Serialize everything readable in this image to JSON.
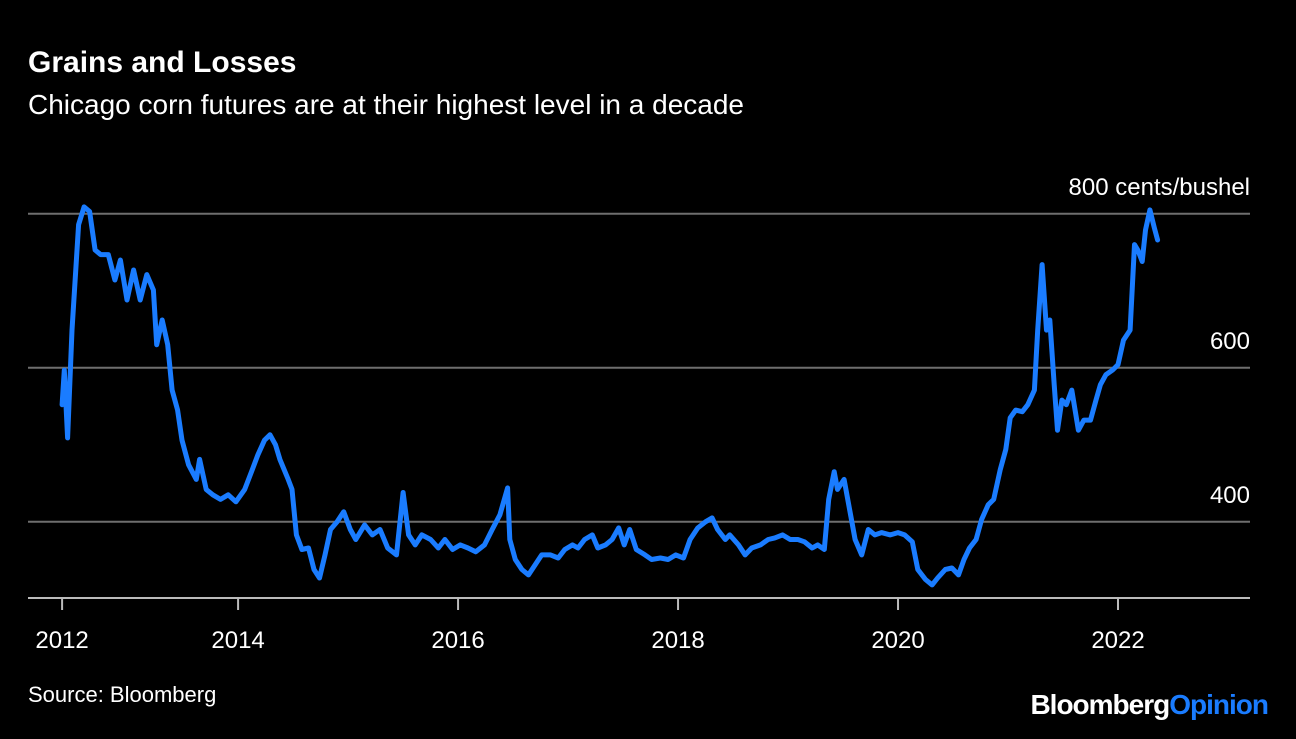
{
  "chart_data": {
    "type": "line",
    "title": "Grains and Losses",
    "subtitle": "Chicago corn futures are at their highest level in a decade",
    "source": "Source: Bloomberg",
    "brand": [
      "Bloomberg",
      "Opinion"
    ],
    "color": "#1a7cff",
    "grid": true,
    "xlim": [
      2012.09,
      2023.2
    ],
    "xticks": [
      2012,
      2014,
      2016,
      2018,
      2020,
      2022
    ],
    "ylim": [
      301,
      860
    ],
    "yticks": [
      400,
      600,
      {
        "value": 800,
        "label": "800 cents/bushel"
      }
    ],
    "x": [
      2012.4,
      2012.42,
      2012.45,
      2012.49,
      2012.55,
      2012.6,
      2012.65,
      2012.7,
      2012.75,
      2012.82,
      2012.88,
      2012.93,
      2012.99,
      2013.05,
      2013.11,
      2013.17,
      2013.23,
      2013.26,
      2013.31,
      2013.36,
      2013.4,
      2013.45,
      2013.49,
      2013.55,
      2013.62,
      2013.65,
      2013.71,
      2013.77,
      2013.84,
      2013.91,
      2013.98,
      2014.06,
      2014.13,
      2014.18,
      2014.24,
      2014.29,
      2014.34,
      2014.38,
      2014.45,
      2014.49,
      2014.53,
      2014.58,
      2014.64,
      2014.69,
      2014.74,
      2014.79,
      2014.84,
      2014.9,
      2014.96,
      2015.02,
      2015.07,
      2015.15,
      2015.22,
      2015.29,
      2015.36,
      2015.44,
      2015.5,
      2015.55,
      2015.61,
      2015.67,
      2015.75,
      2015.82,
      2015.88,
      2015.95,
      2016.02,
      2016.09,
      2016.16,
      2016.24,
      2016.31,
      2016.38,
      2016.45,
      2016.47,
      2016.52,
      2016.58,
      2016.64,
      2016.7,
      2016.76,
      2016.84,
      2016.91,
      2016.97,
      2017.04,
      2017.09,
      2017.15,
      2017.22,
      2017.27,
      2017.34,
      2017.4,
      2017.46,
      2017.51,
      2017.56,
      2017.62,
      2017.7,
      2017.76,
      2017.84,
      2017.91,
      2017.98,
      2018.05,
      2018.11,
      2018.18,
      2018.25,
      2018.31,
      2018.36,
      2018.43,
      2018.47,
      2018.55,
      2018.61,
      2018.67,
      2018.75,
      2018.82,
      2018.88,
      2018.95,
      2019.02,
      2019.09,
      2019.15,
      2019.22,
      2019.27,
      2019.33,
      2019.37,
      2019.42,
      2019.45,
      2019.51,
      2019.56,
      2019.61,
      2019.67,
      2019.73,
      2019.79,
      2019.85,
      2019.93,
      2020.0,
      2020.06,
      2020.13,
      2020.18,
      2020.25,
      2020.31,
      2020.36,
      2020.43,
      2020.49,
      2020.55,
      2020.6,
      2020.65,
      2020.71,
      2020.76,
      2020.82,
      2020.87,
      2020.93,
      2020.98,
      2021.02,
      2021.07,
      2021.13,
      2021.18,
      2021.24,
      2021.27,
      2021.31,
      2021.35,
      2021.38,
      2021.42,
      2021.45,
      2021.49,
      2021.53,
      2021.58,
      2021.64,
      2021.69,
      2021.75,
      2021.8,
      2021.84,
      2021.89,
      2021.95,
      2022.0,
      2022.05,
      2022.11,
      2022.15,
      2022.18,
      2022.22,
      2022.25,
      2022.29,
      2022.33,
      2022.36
    ],
    "values": [
      552,
      597,
      509,
      649,
      786,
      809,
      803,
      753,
      747,
      747,
      714,
      740,
      688,
      727,
      688,
      721,
      701,
      630,
      662,
      630,
      571,
      545,
      506,
      474,
      455,
      481,
      442,
      435,
      429,
      435,
      426,
      442,
      468,
      487,
      506,
      513,
      500,
      481,
      457,
      442,
      383,
      364,
      366,
      338,
      327,
      357,
      390,
      400,
      413,
      390,
      377,
      396,
      383,
      390,
      366,
      357,
      438,
      383,
      370,
      383,
      377,
      366,
      377,
      364,
      370,
      366,
      361,
      370,
      390,
      409,
      444,
      377,
      351,
      338,
      331,
      344,
      357,
      357,
      353,
      364,
      370,
      366,
      377,
      383,
      366,
      370,
      377,
      392,
      370,
      390,
      364,
      357,
      351,
      353,
      351,
      357,
      353,
      377,
      392,
      400,
      405,
      390,
      377,
      383,
      370,
      357,
      366,
      370,
      377,
      379,
      383,
      377,
      377,
      374,
      366,
      370,
      364,
      429,
      465,
      442,
      455,
      416,
      377,
      357,
      390,
      383,
      386,
      383,
      386,
      383,
      374,
      338,
      325,
      318,
      327,
      338,
      340,
      331,
      351,
      366,
      377,
      403,
      422,
      429,
      468,
      494,
      535,
      545,
      543,
      552,
      571,
      649,
      734,
      649,
      662,
      578,
      519,
      558,
      552,
      571,
      519,
      532,
      532,
      558,
      578,
      591,
      597,
      604,
      636,
      649,
      760,
      753,
      738,
      779,
      805,
      782,
      766
    ]
  }
}
